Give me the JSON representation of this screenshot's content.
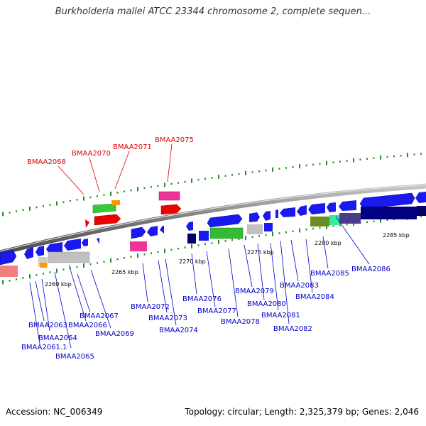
{
  "title": "Burkholderia mallei ATCC 23344 chromosome 2, complete sequen...",
  "footer": {
    "accession": "Accession: NC_006349",
    "summary": "Topology: circular; Length: 2,325,379 bp; Genes: 2,046"
  },
  "colors": {
    "backbone": "#8c8c8c",
    "highlight_label": "#dd0000",
    "label": "#0000cc",
    "tick": "#2a8a2a"
  },
  "ticks": [
    {
      "label": "2260 kbp"
    },
    {
      "label": "2265 kbp"
    },
    {
      "label": "2270 kbp"
    },
    {
      "label": "2275 kbp"
    },
    {
      "label": "2280 kbp"
    },
    {
      "label": "2285 kbp"
    }
  ],
  "highlighted_genes": [
    {
      "name": "BMAA2068"
    },
    {
      "name": "BMAA2070"
    },
    {
      "name": "BMAA2071"
    },
    {
      "name": "BMAA2075"
    }
  ],
  "genes": [
    {
      "name": "BMAA2061.1"
    },
    {
      "name": "BMAA2063"
    },
    {
      "name": "BMAA2064"
    },
    {
      "name": "BMAA2065"
    },
    {
      "name": "BMAA2066"
    },
    {
      "name": "BMAA2067"
    },
    {
      "name": "BMAA2069"
    },
    {
      "name": "BMAA2072"
    },
    {
      "name": "BMAA2073"
    },
    {
      "name": "BMAA2074"
    },
    {
      "name": "BMAA2076"
    },
    {
      "name": "BMAA2077"
    },
    {
      "name": "BMAA2078"
    },
    {
      "name": "BMAA2079"
    },
    {
      "name": "BMAA2080"
    },
    {
      "name": "BMAA2081"
    },
    {
      "name": "BMAA2082"
    },
    {
      "name": "BMAA2083"
    },
    {
      "name": "BMAA2084"
    },
    {
      "name": "BMAA2085"
    },
    {
      "name": "BMAA2086"
    }
  ]
}
